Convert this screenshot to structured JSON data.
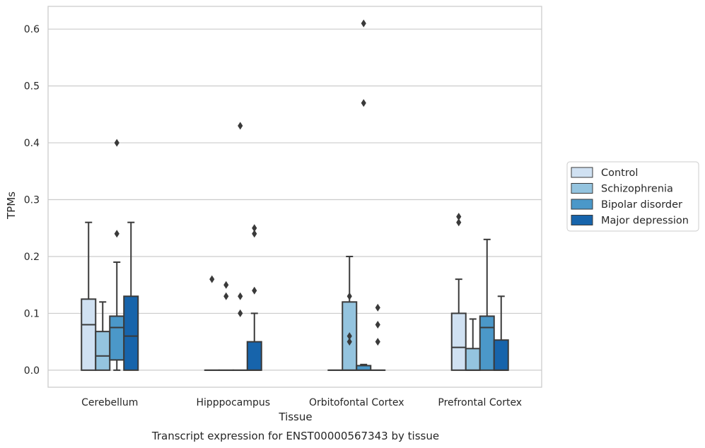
{
  "chart_data": {
    "type": "box",
    "title": "Transcript expression for ENST00000567343 by tissue",
    "xlabel": "Tissue",
    "ylabel": "TPMs",
    "ylim": [
      -0.03,
      0.64
    ],
    "yticks": [
      0.0,
      0.1,
      0.2,
      0.3,
      0.4,
      0.5,
      0.6
    ],
    "ytick_labels": [
      "0.0",
      "0.1",
      "0.2",
      "0.3",
      "0.4",
      "0.5",
      "0.6"
    ],
    "grid": true,
    "legend_position": "right",
    "categories": [
      "Cerebellum",
      "Hipppocampus",
      "Orbitofontal Cortex",
      "Prefrontal Cortex"
    ],
    "series": [
      {
        "name": "Control",
        "color": "#d0e1f2",
        "boxes": [
          {
            "q1": 0.0,
            "median": 0.08,
            "q3": 0.125,
            "whisker_low": 0.0,
            "whisker_high": 0.26,
            "outliers": []
          },
          {
            "q1": 0.0,
            "median": 0.0,
            "q3": 0.0,
            "whisker_low": 0.0,
            "whisker_high": 0.0,
            "outliers": [
              0.16
            ]
          },
          {
            "q1": 0.0,
            "median": 0.0,
            "q3": 0.0,
            "whisker_low": 0.0,
            "whisker_high": 0.0,
            "outliers": []
          },
          {
            "q1": 0.0,
            "median": 0.04,
            "q3": 0.1,
            "whisker_low": 0.0,
            "whisker_high": 0.16,
            "outliers": [
              0.26,
              0.27
            ]
          }
        ]
      },
      {
        "name": "Schizophrenia",
        "color": "#94c4df",
        "boxes": [
          {
            "q1": 0.0,
            "median": 0.025,
            "q3": 0.068,
            "whisker_low": 0.0,
            "whisker_high": 0.12,
            "outliers": []
          },
          {
            "q1": 0.0,
            "median": 0.0,
            "q3": 0.0,
            "whisker_low": 0.0,
            "whisker_high": 0.0,
            "outliers": [
              0.13,
              0.15
            ]
          },
          {
            "q1": 0.0,
            "median": 0.0,
            "q3": 0.12,
            "whisker_low": 0.0,
            "whisker_high": 0.2,
            "outliers": [
              0.05,
              0.06,
              0.13
            ]
          },
          {
            "q1": 0.0,
            "median": 0.0,
            "q3": 0.038,
            "whisker_low": 0.0,
            "whisker_high": 0.09,
            "outliers": []
          }
        ]
      },
      {
        "name": "Bipolar disorder",
        "color": "#4b98c9",
        "boxes": [
          {
            "q1": 0.018,
            "median": 0.075,
            "q3": 0.095,
            "whisker_low": 0.0,
            "whisker_high": 0.19,
            "outliers": [
              0.24,
              0.4
            ]
          },
          {
            "q1": 0.0,
            "median": 0.0,
            "q3": 0.0,
            "whisker_low": 0.0,
            "whisker_high": 0.0,
            "outliers": [
              0.1,
              0.13,
              0.43
            ]
          },
          {
            "q1": 0.0,
            "median": 0.0,
            "q3": 0.008,
            "whisker_low": 0.0,
            "whisker_high": 0.01,
            "outliers": [
              0.47,
              0.61
            ]
          },
          {
            "q1": 0.0,
            "median": 0.075,
            "q3": 0.095,
            "whisker_low": 0.0,
            "whisker_high": 0.23,
            "outliers": []
          }
        ]
      },
      {
        "name": "Major depression",
        "color": "#1764ab",
        "boxes": [
          {
            "q1": 0.0,
            "median": 0.06,
            "q3": 0.13,
            "whisker_low": 0.0,
            "whisker_high": 0.26,
            "outliers": []
          },
          {
            "q1": 0.0,
            "median": 0.0,
            "q3": 0.05,
            "whisker_low": 0.0,
            "whisker_high": 0.1,
            "outliers": [
              0.14,
              0.24,
              0.25
            ]
          },
          {
            "q1": 0.0,
            "median": 0.0,
            "q3": 0.0,
            "whisker_low": 0.0,
            "whisker_high": 0.0,
            "outliers": [
              0.05,
              0.08,
              0.11
            ]
          },
          {
            "q1": 0.0,
            "median": 0.0,
            "q3": 0.053,
            "whisker_low": 0.0,
            "whisker_high": 0.13,
            "outliers": []
          }
        ]
      }
    ]
  }
}
